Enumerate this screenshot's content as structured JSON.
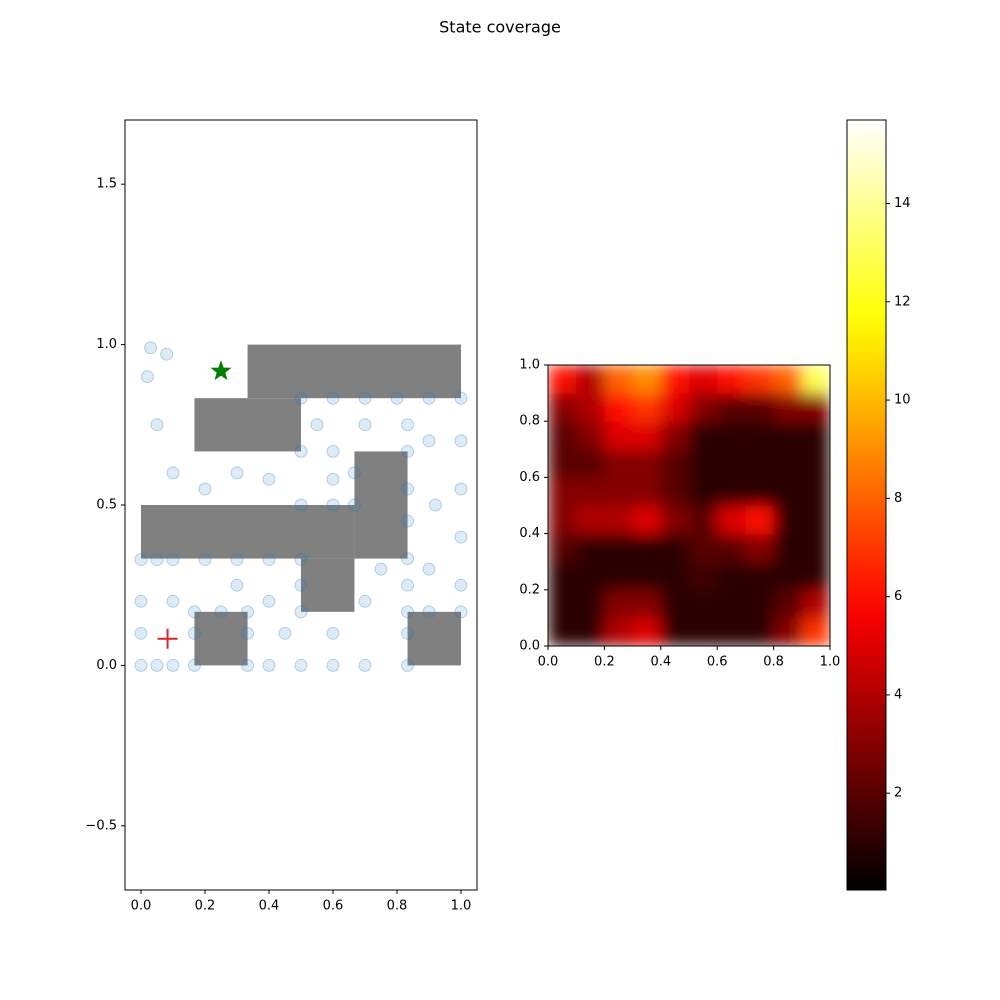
{
  "title": "State coverage",
  "chart_data": [
    {
      "type": "scatter",
      "xlim": [
        -0.05,
        1.05
      ],
      "ylim": [
        -0.7,
        1.7
      ],
      "xticks": [
        {
          "value": 0,
          "label": "0.0"
        },
        {
          "value": 0.2,
          "label": "0.2"
        },
        {
          "value": 0.4,
          "label": "0.4"
        },
        {
          "value": 0.6,
          "label": "0.6"
        },
        {
          "value": 0.8,
          "label": "0.8"
        },
        {
          "value": 1,
          "label": "1.0"
        }
      ],
      "yticks": [
        {
          "value": -0.5,
          "label": "−0.5"
        },
        {
          "value": 0,
          "label": "0.0"
        },
        {
          "value": 0.5,
          "label": "0.5"
        },
        {
          "value": 1,
          "label": "1.0"
        },
        {
          "value": 1.5,
          "label": "1.5"
        }
      ],
      "wall_color": "#808080",
      "walls": [
        [
          0.333,
          0.833,
          1.0,
          1.0
        ],
        [
          0.167,
          0.667,
          0.5,
          0.833
        ],
        [
          0,
          0.333,
          0.667,
          0.5
        ],
        [
          0.5,
          0.167,
          0.667,
          0.333
        ],
        [
          0.667,
          0.333,
          0.833,
          0.667
        ],
        [
          0.167,
          0,
          0.333,
          0.167
        ],
        [
          0.833,
          0,
          1.0,
          0.167
        ]
      ],
      "color": "#1f77b4",
      "x": [
        0,
        0,
        0,
        0,
        0.05,
        0.1,
        0.2,
        0.3,
        0.4,
        0.5,
        0.5,
        0.5,
        0.05,
        0.1,
        0.167,
        0.167,
        0.167,
        0.25,
        0.333,
        0.333,
        0.333,
        0.4,
        0.5,
        0.6,
        0.7,
        0.833,
        0.833,
        0.833,
        0.833,
        0.833,
        0.833,
        0.833,
        0.833,
        0.833,
        0.5,
        0.6,
        0.7,
        0.8,
        0.9,
        1.0,
        1.0,
        1.0,
        1.0,
        1.0,
        1.0,
        0.9,
        0.5,
        0.6,
        0.667,
        0.667,
        0.6,
        0.5,
        0.1,
        0.3,
        0.4,
        0.45,
        0.6,
        0.7,
        0.75,
        0.9,
        0.92,
        0.9,
        0.7,
        0.55,
        0.3,
        0.2,
        0.1,
        0.05,
        0.02,
        0.03,
        0.08,
        0.4,
        0.6
      ],
      "y": [
        0,
        0.1,
        0.2,
        0.33,
        0.33,
        0.33,
        0.33,
        0.33,
        0.33,
        0.33,
        0.25,
        0.167,
        0,
        0,
        0,
        0.1,
        0.167,
        0.167,
        0.167,
        0.1,
        0,
        0,
        0,
        0,
        0,
        0,
        0.1,
        0.167,
        0.25,
        0.333,
        0.45,
        0.55,
        0.667,
        0.75,
        0.833,
        0.833,
        0.833,
        0.833,
        0.833,
        0.833,
        0.7,
        0.55,
        0.4,
        0.25,
        0.167,
        0.167,
        0.667,
        0.667,
        0.6,
        0.5,
        0.5,
        0.5,
        0.2,
        0.25,
        0.2,
        0.1,
        0.1,
        0.2,
        0.3,
        0.3,
        0.5,
        0.7,
        0.75,
        0.75,
        0.6,
        0.55,
        0.6,
        0.75,
        0.9,
        0.99,
        0.97,
        0.58,
        0.58
      ],
      "start": [
        0.083,
        0.083
      ],
      "start_color": "#d62728",
      "goal": [
        0.25,
        0.917
      ],
      "goal_color": "#008000"
    },
    {
      "type": "heatmap",
      "xlim": [
        0,
        1
      ],
      "ylim": [
        0,
        1
      ],
      "xticks": [
        {
          "value": 0,
          "label": "0.0"
        },
        {
          "value": 0.2,
          "label": "0.2"
        },
        {
          "value": 0.4,
          "label": "0.4"
        },
        {
          "value": 0.6,
          "label": "0.6"
        },
        {
          "value": 0.8,
          "label": "0.8"
        },
        {
          "value": 1,
          "label": "1.0"
        }
      ],
      "yticks": [
        {
          "value": 0,
          "label": "0.0"
        },
        {
          "value": 0.2,
          "label": "0.2"
        },
        {
          "value": 0.4,
          "label": "0.4"
        },
        {
          "value": 0.6,
          "label": "0.6"
        },
        {
          "value": 0.8,
          "label": "0.8"
        },
        {
          "value": 1,
          "label": "1.0"
        }
      ],
      "cmap": "hot",
      "clim": [
        0.03,
        15.7
      ],
      "colorbar_ticks": [
        2,
        4,
        6,
        8,
        10,
        12,
        14
      ],
      "z": [
        [
          1,
          1,
          4,
          5,
          1,
          1,
          1,
          1,
          3,
          7
        ],
        [
          1,
          1,
          3,
          3,
          1,
          1,
          1,
          1,
          2,
          4
        ],
        [
          1,
          1,
          1,
          1,
          1,
          1.5,
          1,
          1,
          1,
          1
        ],
        [
          2,
          1,
          1,
          1,
          1,
          2,
          2,
          3,
          1,
          1
        ],
        [
          3,
          4,
          4,
          5,
          3,
          2,
          5,
          6,
          1,
          1
        ],
        [
          3,
          3,
          3,
          3,
          2,
          1,
          1,
          1,
          1,
          1
        ],
        [
          2,
          2,
          3,
          3,
          2,
          1,
          1,
          1,
          1,
          1
        ],
        [
          2,
          3,
          5,
          5,
          3,
          1,
          1,
          1,
          1,
          1
        ],
        [
          3,
          4,
          6,
          7,
          5,
          3,
          2,
          2,
          3,
          3
        ],
        [
          6,
          4,
          8,
          9,
          6,
          5,
          6,
          7,
          8,
          13
        ]
      ]
    }
  ]
}
